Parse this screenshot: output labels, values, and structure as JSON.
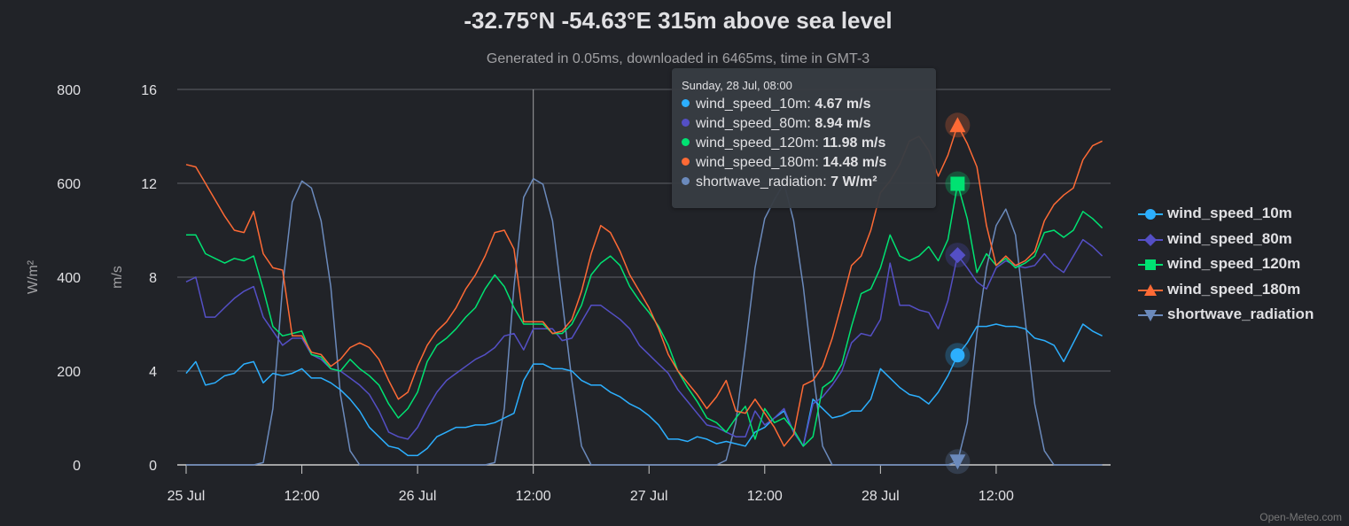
{
  "title": "-32.75°N -54.63°E 315m above sea level",
  "subtitle": "Generated in 0.05ms, downloaded in 6465ms, time in GMT-3",
  "credit": "Open-Meteo.com",
  "tooltip": {
    "header": "Sunday, 28 Jul, 08:00",
    "rows": [
      {
        "label": "wind_speed_10m",
        "value": "4.67 m/s",
        "color": "#2caffe"
      },
      {
        "label": "wind_speed_80m",
        "value": "8.94 m/s",
        "color": "#544fc5"
      },
      {
        "label": "wind_speed_120m",
        "value": "11.98 m/s",
        "color": "#00e272"
      },
      {
        "label": "wind_speed_180m",
        "value": "14.48 m/s",
        "color": "#fe6a35"
      },
      {
        "label": "shortwave_radiation",
        "value": "7 W/m²",
        "color": "#6b8abc"
      }
    ]
  },
  "chart_data": {
    "type": "line",
    "title": "-32.75°N -54.63°E 315m above sea level",
    "subtitle": "Generated in 0.05ms, downloaded in 6465ms, time in GMT-3",
    "x_start": "25 Jul 00:00",
    "x_step_hours": 1,
    "x_ticks": [
      "25 Jul",
      "12:00",
      "26 Jul",
      "12:00",
      "27 Jul",
      "12:00",
      "28 Jul",
      "12:00"
    ],
    "x_tick_hours": [
      0,
      12,
      24,
      36,
      48,
      60,
      72,
      84
    ],
    "y_axes": [
      {
        "title": "m/s",
        "range": [
          0,
          16
        ],
        "ticks": [
          "0",
          "4",
          "8",
          "12",
          "16"
        ]
      },
      {
        "title": "W/m²",
        "range": [
          0,
          800
        ],
        "ticks": [
          "0",
          "200",
          "400",
          "600",
          "800"
        ]
      }
    ],
    "grid": true,
    "legend_position": "right",
    "crosshair_hour": 36,
    "highlight_hour": 80,
    "series": [
      {
        "name": "wind_speed_10m",
        "axis": "m/s",
        "color": "#2caffe",
        "marker": "circle",
        "values": [
          3.9,
          4.4,
          3.4,
          3.5,
          3.8,
          3.9,
          4.3,
          4.4,
          3.5,
          3.9,
          3.8,
          3.9,
          4.1,
          3.7,
          3.7,
          3.5,
          3.2,
          2.8,
          2.3,
          1.6,
          1.2,
          0.8,
          0.7,
          0.4,
          0.4,
          0.7,
          1.2,
          1.4,
          1.6,
          1.6,
          1.7,
          1.7,
          1.8,
          2.0,
          2.2,
          3.6,
          4.3,
          4.3,
          4.1,
          4.1,
          4.0,
          3.6,
          3.4,
          3.4,
          3.1,
          2.9,
          2.6,
          2.4,
          2.1,
          1.7,
          1.1,
          1.1,
          1.0,
          1.2,
          1.1,
          0.9,
          1.0,
          0.9,
          0.8,
          1.4,
          1.6,
          2.0,
          2.3,
          1.4,
          0.8,
          2.8,
          2.4,
          2.0,
          2.1,
          2.3,
          2.3,
          2.8,
          4.1,
          3.7,
          3.3,
          3.0,
          2.9,
          2.6,
          3.1,
          3.8,
          4.67,
          5.2,
          5.9,
          5.9,
          6.0,
          5.9,
          5.9,
          5.8,
          5.4,
          5.3,
          5.1,
          4.4,
          5.2,
          6.0,
          5.7,
          5.5
        ]
      },
      {
        "name": "wind_speed_80m",
        "axis": "m/s",
        "color": "#544fc5",
        "marker": "diamond",
        "values": [
          7.8,
          8.0,
          6.3,
          6.3,
          6.7,
          7.1,
          7.4,
          7.6,
          6.3,
          5.7,
          5.1,
          5.4,
          5.4,
          4.7,
          4.5,
          4.1,
          4.0,
          3.7,
          3.4,
          3.0,
          2.3,
          1.4,
          1.2,
          1.1,
          1.6,
          2.4,
          3.1,
          3.6,
          3.9,
          4.2,
          4.5,
          4.7,
          5.0,
          5.5,
          5.6,
          4.9,
          5.8,
          5.8,
          5.8,
          5.3,
          5.4,
          6.1,
          6.8,
          6.8,
          6.5,
          6.2,
          5.8,
          5.1,
          4.7,
          4.3,
          3.9,
          3.2,
          2.7,
          2.2,
          1.7,
          1.6,
          1.4,
          1.2,
          1.2,
          2.3,
          1.7,
          2.0,
          2.4,
          1.4,
          0.8,
          2.6,
          2.9,
          3.4,
          4.0,
          5.2,
          5.6,
          5.5,
          6.2,
          8.6,
          6.8,
          6.8,
          6.6,
          6.5,
          5.8,
          7.0,
          8.94,
          8.4,
          7.8,
          7.5,
          8.4,
          8.7,
          8.5,
          8.4,
          8.5,
          9.0,
          8.5,
          8.2,
          8.9,
          9.6,
          9.3,
          8.9
        ]
      },
      {
        "name": "wind_speed_120m",
        "axis": "m/s",
        "color": "#00e272",
        "marker": "square",
        "values": [
          9.8,
          9.8,
          9.0,
          8.8,
          8.6,
          8.8,
          8.7,
          8.9,
          7.5,
          5.9,
          5.5,
          5.6,
          5.7,
          4.7,
          4.6,
          4.1,
          4.0,
          4.5,
          4.1,
          3.8,
          3.4,
          2.6,
          2.0,
          2.4,
          3.1,
          4.4,
          5.1,
          5.4,
          5.8,
          6.3,
          6.7,
          7.5,
          8.1,
          7.6,
          6.7,
          6.0,
          6.0,
          6.0,
          5.6,
          5.6,
          6.0,
          6.8,
          8.1,
          8.6,
          8.9,
          8.5,
          7.6,
          7.0,
          6.5,
          5.9,
          5.1,
          4.0,
          3.3,
          2.7,
          2.0,
          1.8,
          1.4,
          2.0,
          2.5,
          1.1,
          2.4,
          1.8,
          2.0,
          1.5,
          0.8,
          1.2,
          3.3,
          3.6,
          4.3,
          5.9,
          7.3,
          7.5,
          8.4,
          9.8,
          8.9,
          8.7,
          8.9,
          9.3,
          8.7,
          9.6,
          11.98,
          10.5,
          8.2,
          9.0,
          8.5,
          8.8,
          8.4,
          8.6,
          8.9,
          9.9,
          10.0,
          9.7,
          10.0,
          10.8,
          10.5,
          10.1
        ]
      },
      {
        "name": "wind_speed_180m",
        "axis": "m/s",
        "color": "#fe6a35",
        "marker": "triangle",
        "values": [
          12.8,
          12.7,
          12.0,
          11.3,
          10.6,
          10.0,
          9.9,
          10.8,
          9.0,
          8.4,
          8.3,
          5.5,
          5.5,
          4.8,
          4.7,
          4.2,
          4.5,
          5.0,
          5.2,
          5.0,
          4.5,
          3.6,
          2.8,
          3.1,
          4.2,
          5.1,
          5.7,
          6.1,
          6.7,
          7.5,
          8.1,
          8.9,
          9.9,
          10.0,
          9.2,
          6.1,
          6.1,
          6.1,
          5.6,
          5.7,
          6.2,
          7.4,
          9.0,
          10.2,
          9.9,
          9.1,
          8.1,
          7.4,
          6.7,
          5.8,
          4.7,
          4.0,
          3.5,
          3.0,
          2.4,
          2.9,
          3.6,
          2.3,
          2.2,
          2.8,
          2.2,
          1.6,
          0.8,
          1.3,
          3.4,
          3.6,
          4.2,
          5.4,
          6.9,
          8.5,
          8.9,
          10.0,
          11.6,
          12.1,
          12.8,
          13.8,
          14.0,
          13.4,
          12.3,
          13.2,
          14.48,
          13.7,
          12.7,
          10.2,
          8.5,
          8.9,
          8.5,
          8.7,
          9.1,
          10.4,
          11.1,
          11.5,
          11.8,
          13.0,
          13.6,
          13.8
        ]
      },
      {
        "name": "shortwave_radiation",
        "axis": "W/m²",
        "color": "#6b8abc",
        "marker": "triangle-down",
        "values": [
          0,
          0,
          0,
          0,
          0,
          0,
          0,
          0,
          5,
          120,
          380,
          560,
          605,
          590,
          520,
          380,
          150,
          30,
          0,
          0,
          0,
          0,
          0,
          0,
          0,
          0,
          0,
          0,
          0,
          0,
          0,
          0,
          5,
          120,
          380,
          570,
          610,
          598,
          520,
          350,
          180,
          40,
          0,
          0,
          0,
          0,
          0,
          0,
          0,
          0,
          0,
          0,
          0,
          0,
          0,
          0,
          10,
          90,
          250,
          420,
          525,
          565,
          600,
          520,
          380,
          200,
          40,
          0,
          0,
          0,
          0,
          0,
          0,
          0,
          0,
          0,
          0,
          0,
          0,
          0,
          7,
          90,
          280,
          420,
          510,
          545,
          490,
          310,
          130,
          30,
          0,
          0,
          0,
          0,
          0,
          0
        ]
      }
    ]
  },
  "legend": [
    {
      "label": "wind_speed_10m",
      "color": "#2caffe",
      "symbol": "circle"
    },
    {
      "label": "wind_speed_80m",
      "color": "#544fc5",
      "symbol": "diamond"
    },
    {
      "label": "wind_speed_120m",
      "color": "#00e272",
      "symbol": "square"
    },
    {
      "label": "wind_speed_180m",
      "color": "#fe6a35",
      "symbol": "triangle"
    },
    {
      "label": "shortwave_radiation",
      "color": "#6b8abc",
      "symbol": "triangle-down"
    }
  ]
}
